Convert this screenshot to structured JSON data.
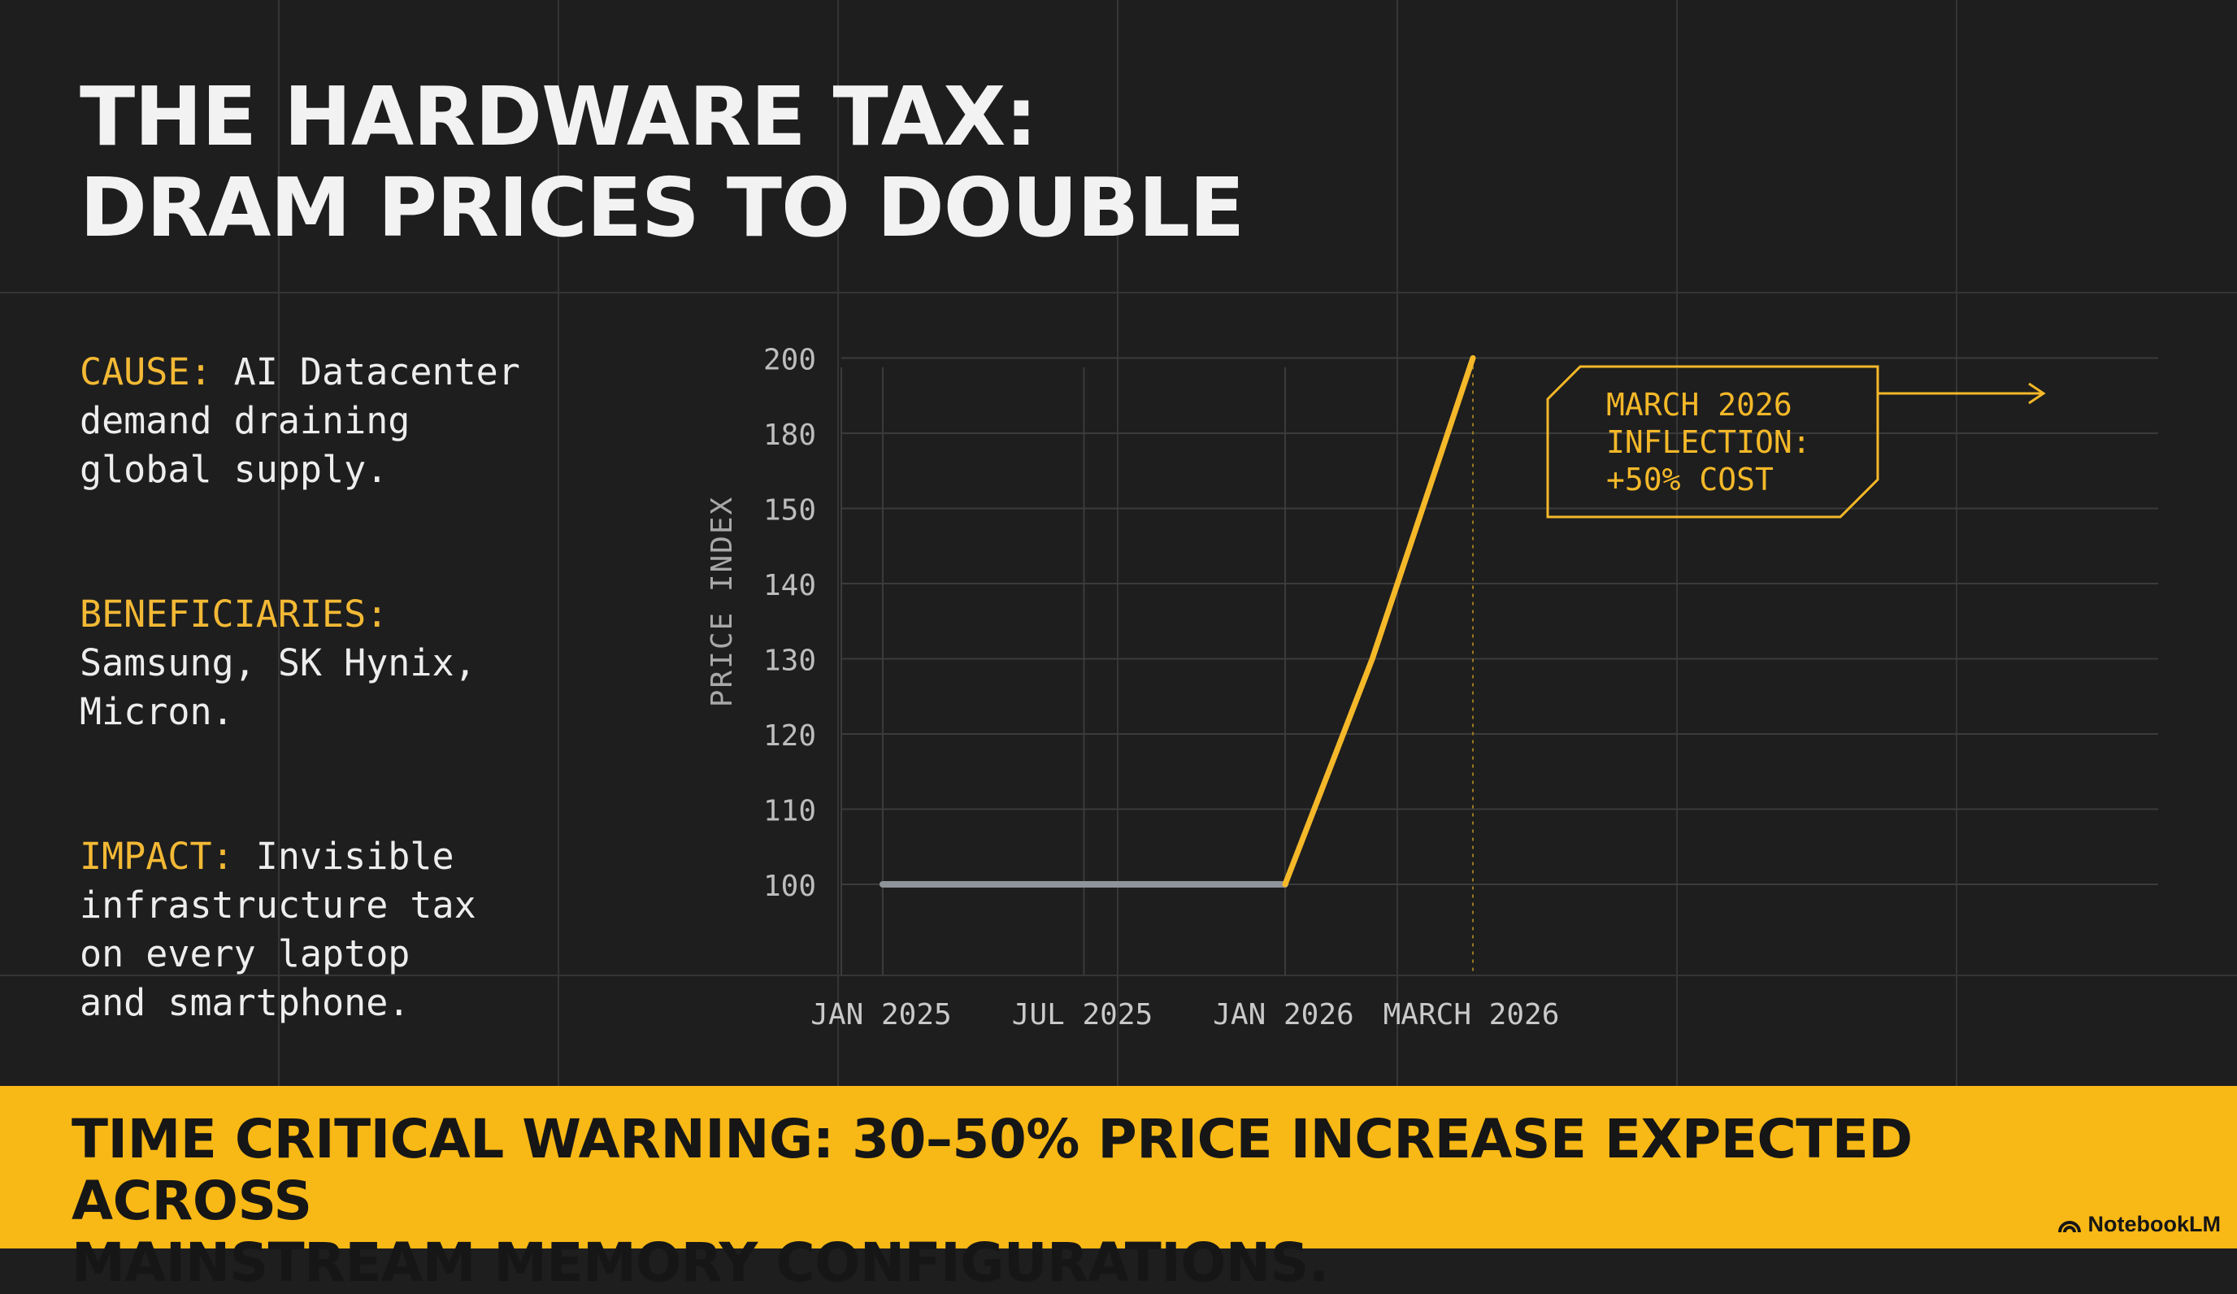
{
  "title": {
    "line1": "THE HARDWARE TAX:",
    "line2": "DRAM PRICES TO DOUBLE"
  },
  "sidebar": {
    "items": [
      {
        "label": "CAUSE:",
        "lines": [
          "AI Datacenter",
          "demand draining",
          "global supply."
        ]
      },
      {
        "label": "BENEFICIARIES:",
        "lines": [
          "Samsung, SK Hynix,",
          "Micron."
        ]
      },
      {
        "label": "IMPACT:",
        "lines": [
          "Invisible",
          "infrastructure tax",
          "on every laptop",
          "and smartphone."
        ]
      }
    ]
  },
  "chart_data": {
    "type": "line",
    "ylabel": "PRICE INDEX",
    "yticks": [
      100,
      110,
      120,
      130,
      140,
      150,
      180,
      200
    ],
    "xticks": [
      "JAN 2025",
      "JUL 2025",
      "JAN 2026",
      "MARCH 2026"
    ],
    "x_positions": [
      0,
      6,
      12,
      17.6
    ],
    "series": [
      {
        "name": "baseline",
        "color": "#8e9499",
        "points": [
          [
            0,
            100
          ],
          [
            12,
            100
          ]
        ]
      },
      {
        "name": "surge",
        "color": "#f4b829",
        "points": [
          [
            12,
            100
          ],
          [
            14.6,
            130
          ],
          [
            17.6,
            200
          ]
        ]
      }
    ],
    "annotation": {
      "lines": [
        "MARCH 2026",
        "INFLECTION:",
        "+50% COST"
      ],
      "color": "#f4b829"
    }
  },
  "banner": {
    "line1": "TIME CRITICAL WARNING: 30–50% PRICE INCREASE EXPECTED ACROSS",
    "line2": "MAINSTREAM MEMORY CONFIGURATIONS."
  },
  "brand": {
    "name": "NotebookLM"
  },
  "colors": {
    "background": "#1e1e1e",
    "accent": "#f4b829",
    "banner": "#f8b815"
  }
}
